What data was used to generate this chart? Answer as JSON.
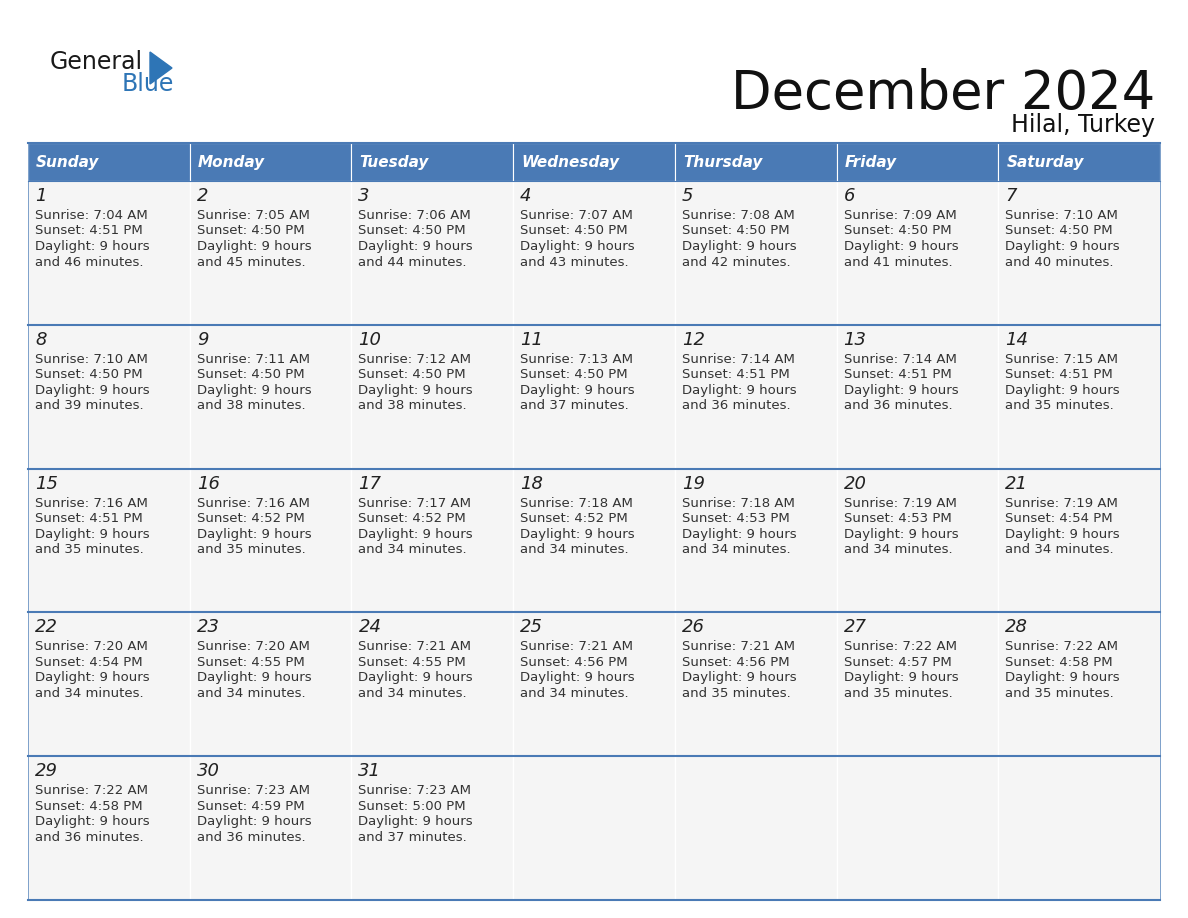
{
  "title": "December 2024",
  "subtitle": "Hilal, Turkey",
  "header_color": "#4a7ab5",
  "header_text_color": "#FFFFFF",
  "background_color": "#FFFFFF",
  "row_bg_color": "#F2F2F2",
  "separator_color": "#4a7ab5",
  "days_of_week": [
    "Sunday",
    "Monday",
    "Tuesday",
    "Wednesday",
    "Thursday",
    "Friday",
    "Saturday"
  ],
  "calendar_data": [
    [
      {
        "day": 1,
        "sunrise": "7:04 AM",
        "sunset": "4:51 PM",
        "daylight_h": "9 hours",
        "daylight_m": "and 46 minutes."
      },
      {
        "day": 2,
        "sunrise": "7:05 AM",
        "sunset": "4:50 PM",
        "daylight_h": "9 hours",
        "daylight_m": "and 45 minutes."
      },
      {
        "day": 3,
        "sunrise": "7:06 AM",
        "sunset": "4:50 PM",
        "daylight_h": "9 hours",
        "daylight_m": "and 44 minutes."
      },
      {
        "day": 4,
        "sunrise": "7:07 AM",
        "sunset": "4:50 PM",
        "daylight_h": "9 hours",
        "daylight_m": "and 43 minutes."
      },
      {
        "day": 5,
        "sunrise": "7:08 AM",
        "sunset": "4:50 PM",
        "daylight_h": "9 hours",
        "daylight_m": "and 42 minutes."
      },
      {
        "day": 6,
        "sunrise": "7:09 AM",
        "sunset": "4:50 PM",
        "daylight_h": "9 hours",
        "daylight_m": "and 41 minutes."
      },
      {
        "day": 7,
        "sunrise": "7:10 AM",
        "sunset": "4:50 PM",
        "daylight_h": "9 hours",
        "daylight_m": "and 40 minutes."
      }
    ],
    [
      {
        "day": 8,
        "sunrise": "7:10 AM",
        "sunset": "4:50 PM",
        "daylight_h": "9 hours",
        "daylight_m": "and 39 minutes."
      },
      {
        "day": 9,
        "sunrise": "7:11 AM",
        "sunset": "4:50 PM",
        "daylight_h": "9 hours",
        "daylight_m": "and 38 minutes."
      },
      {
        "day": 10,
        "sunrise": "7:12 AM",
        "sunset": "4:50 PM",
        "daylight_h": "9 hours",
        "daylight_m": "and 38 minutes."
      },
      {
        "day": 11,
        "sunrise": "7:13 AM",
        "sunset": "4:50 PM",
        "daylight_h": "9 hours",
        "daylight_m": "and 37 minutes."
      },
      {
        "day": 12,
        "sunrise": "7:14 AM",
        "sunset": "4:51 PM",
        "daylight_h": "9 hours",
        "daylight_m": "and 36 minutes."
      },
      {
        "day": 13,
        "sunrise": "7:14 AM",
        "sunset": "4:51 PM",
        "daylight_h": "9 hours",
        "daylight_m": "and 36 minutes."
      },
      {
        "day": 14,
        "sunrise": "7:15 AM",
        "sunset": "4:51 PM",
        "daylight_h": "9 hours",
        "daylight_m": "and 35 minutes."
      }
    ],
    [
      {
        "day": 15,
        "sunrise": "7:16 AM",
        "sunset": "4:51 PM",
        "daylight_h": "9 hours",
        "daylight_m": "and 35 minutes."
      },
      {
        "day": 16,
        "sunrise": "7:16 AM",
        "sunset": "4:52 PM",
        "daylight_h": "9 hours",
        "daylight_m": "and 35 minutes."
      },
      {
        "day": 17,
        "sunrise": "7:17 AM",
        "sunset": "4:52 PM",
        "daylight_h": "9 hours",
        "daylight_m": "and 34 minutes."
      },
      {
        "day": 18,
        "sunrise": "7:18 AM",
        "sunset": "4:52 PM",
        "daylight_h": "9 hours",
        "daylight_m": "and 34 minutes."
      },
      {
        "day": 19,
        "sunrise": "7:18 AM",
        "sunset": "4:53 PM",
        "daylight_h": "9 hours",
        "daylight_m": "and 34 minutes."
      },
      {
        "day": 20,
        "sunrise": "7:19 AM",
        "sunset": "4:53 PM",
        "daylight_h": "9 hours",
        "daylight_m": "and 34 minutes."
      },
      {
        "day": 21,
        "sunrise": "7:19 AM",
        "sunset": "4:54 PM",
        "daylight_h": "9 hours",
        "daylight_m": "and 34 minutes."
      }
    ],
    [
      {
        "day": 22,
        "sunrise": "7:20 AM",
        "sunset": "4:54 PM",
        "daylight_h": "9 hours",
        "daylight_m": "and 34 minutes."
      },
      {
        "day": 23,
        "sunrise": "7:20 AM",
        "sunset": "4:55 PM",
        "daylight_h": "9 hours",
        "daylight_m": "and 34 minutes."
      },
      {
        "day": 24,
        "sunrise": "7:21 AM",
        "sunset": "4:55 PM",
        "daylight_h": "9 hours",
        "daylight_m": "and 34 minutes."
      },
      {
        "day": 25,
        "sunrise": "7:21 AM",
        "sunset": "4:56 PM",
        "daylight_h": "9 hours",
        "daylight_m": "and 34 minutes."
      },
      {
        "day": 26,
        "sunrise": "7:21 AM",
        "sunset": "4:56 PM",
        "daylight_h": "9 hours",
        "daylight_m": "and 35 minutes."
      },
      {
        "day": 27,
        "sunrise": "7:22 AM",
        "sunset": "4:57 PM",
        "daylight_h": "9 hours",
        "daylight_m": "and 35 minutes."
      },
      {
        "day": 28,
        "sunrise": "7:22 AM",
        "sunset": "4:58 PM",
        "daylight_h": "9 hours",
        "daylight_m": "and 35 minutes."
      }
    ],
    [
      {
        "day": 29,
        "sunrise": "7:22 AM",
        "sunset": "4:58 PM",
        "daylight_h": "9 hours",
        "daylight_m": "and 36 minutes."
      },
      {
        "day": 30,
        "sunrise": "7:23 AM",
        "sunset": "4:59 PM",
        "daylight_h": "9 hours",
        "daylight_m": "and 36 minutes."
      },
      {
        "day": 31,
        "sunrise": "7:23 AM",
        "sunset": "5:00 PM",
        "daylight_h": "9 hours",
        "daylight_m": "and 37 minutes."
      },
      null,
      null,
      null,
      null
    ]
  ],
  "logo_text_general": "General",
  "logo_text_blue": "Blue",
  "logo_color_general": "#1A1A1A",
  "logo_color_blue": "#2E75B6",
  "logo_triangle_color": "#2E75B6",
  "title_fontsize": 38,
  "subtitle_fontsize": 17,
  "day_num_fontsize": 13,
  "cell_text_fontsize": 9.5,
  "header_fontsize": 11
}
